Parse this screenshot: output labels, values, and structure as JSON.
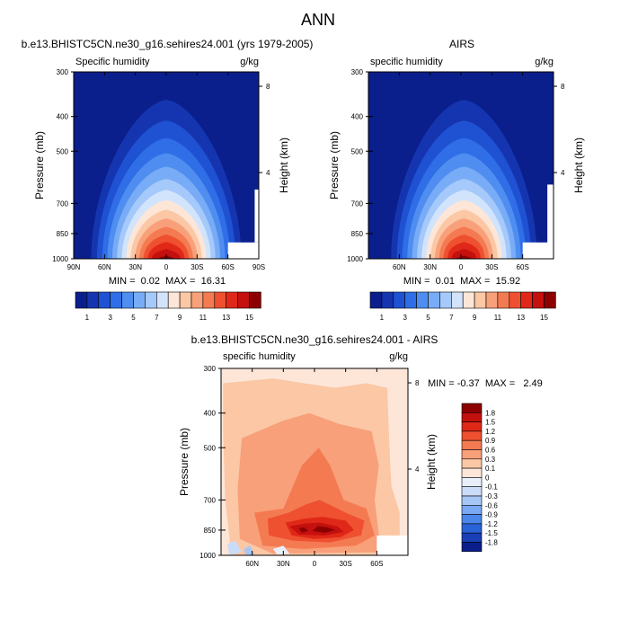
{
  "figure": {
    "title": "ANN"
  },
  "panel_a": {
    "title": "b.e13.BHISTC5CN.ne30_g16.sehires24.001 (yrs 1979-2005)",
    "variable": "Specific humidity",
    "units": "g/kg",
    "ylabel": "Pressure (mb)",
    "y2label": "Height (km)",
    "stats": "MIN =  0.02  MAX =  16.31"
  },
  "panel_b": {
    "title": "AIRS",
    "variable": "specific humidity",
    "units": "g/kg",
    "ylabel": "Pressure (mb)",
    "y2label": "Height (km)",
    "stats": "MIN =  0.01  MAX =  15.92"
  },
  "panel_c": {
    "title": "b.e13.BHISTC5CN.ne30_g16.sehires24.001 - AIRS",
    "variable": "specific humidity",
    "units": "g/kg",
    "ylabel": "Pressure (mb)",
    "y2label": "Height (km)",
    "stats": "MIN = -0.37  MAX =   2.49"
  },
  "colorbar_q": {
    "labels": [
      "1",
      "3",
      "5",
      "7",
      "9",
      "11",
      "13",
      "15"
    ],
    "colors": [
      "#0a1f8c",
      "#1535b0",
      "#1f52d2",
      "#2f6ee6",
      "#4f8ef0",
      "#79acf6",
      "#a5c9fa",
      "#d2e4fc",
      "#fde6d8",
      "#fbc7a5",
      "#f8a07a",
      "#f47a52",
      "#ee5030",
      "#e02818",
      "#c4100e",
      "#8c0000"
    ]
  },
  "colorbar_diff": {
    "labels": [
      "1.8",
      "1.5",
      "1.2",
      "0.9",
      "0.6",
      "0.3",
      "0.1",
      "0",
      "-0.1",
      "-0.3",
      "-0.6",
      "-0.9",
      "-1.2",
      "-1.5",
      "-1.8"
    ],
    "colors": [
      "#8c0000",
      "#c4100e",
      "#e02818",
      "#ee5030",
      "#f47a52",
      "#f8a07a",
      "#fbc7a5",
      "#fde6d8",
      "#e8eefa",
      "#cbdcf8",
      "#a6c6f6",
      "#7aa8f2",
      "#4d86ea",
      "#2a62d8",
      "#1a40b8",
      "#0a1f8c"
    ]
  },
  "chart_data": [
    {
      "type": "heatmap",
      "title": "b.e13.BHISTC5CN.ne30_g16.sehires24.001 (yrs 1979-2005)",
      "subtitle": "Specific humidity",
      "units": "g/kg",
      "xlabel": "",
      "ylabel": "Pressure (mb)",
      "y2label": "Height (km)",
      "x_ticks": [
        "90N",
        "60N",
        "30N",
        "0",
        "30S",
        "60S",
        "90S"
      ],
      "x_tick_values": [
        90,
        60,
        30,
        0,
        -30,
        -60,
        -90
      ],
      "y_ticks": [
        300,
        400,
        500,
        700,
        850,
        1000
      ],
      "y_scale": "log",
      "y2_ticks": [
        8,
        4
      ],
      "xlim": [
        90,
        -90
      ],
      "ylim": [
        1000,
        300
      ],
      "levels": [
        1,
        2,
        3,
        4,
        5,
        6,
        7,
        8,
        9,
        10,
        11,
        12,
        13,
        14,
        15
      ],
      "peak_value": 16.31,
      "peak_location": [
        0,
        1000
      ],
      "min": 0.02,
      "max": 16.31
    },
    {
      "type": "heatmap",
      "title": "AIRS",
      "subtitle": "specific humidity",
      "units": "g/kg",
      "xlabel": "",
      "ylabel": "Pressure (mb)",
      "y2label": "Height (km)",
      "x_ticks": [
        "60N",
        "30N",
        "0",
        "30S",
        "60S"
      ],
      "x_tick_values": [
        60,
        30,
        0,
        -30,
        -60
      ],
      "y_ticks": [
        300,
        400,
        500,
        700,
        850,
        1000
      ],
      "y_scale": "log",
      "y2_ticks": [
        8,
        4
      ],
      "xlim": [
        90,
        -90
      ],
      "ylim": [
        1000,
        300
      ],
      "levels": [
        1,
        2,
        3,
        4,
        5,
        6,
        7,
        8,
        9,
        10,
        11,
        12,
        13,
        14,
        15
      ],
      "peak_value": 15.92,
      "peak_location": [
        0,
        1000
      ],
      "min": 0.01,
      "max": 15.92
    },
    {
      "type": "heatmap",
      "title": "b.e13.BHISTC5CN.ne30_g16.sehires24.001 - AIRS",
      "subtitle": "specific humidity",
      "units": "g/kg",
      "xlabel": "",
      "ylabel": "Pressure (mb)",
      "y2label": "Height (km)",
      "x_ticks": [
        "60N",
        "30N",
        "0",
        "30S",
        "60S"
      ],
      "x_tick_values": [
        60,
        30,
        0,
        -30,
        -60
      ],
      "y_ticks": [
        300,
        400,
        500,
        700,
        850,
        1000
      ],
      "y_scale": "log",
      "y2_ticks": [
        8,
        4
      ],
      "xlim": [
        90,
        -90
      ],
      "ylim": [
        1000,
        300
      ],
      "levels": [
        -1.8,
        -1.5,
        -1.2,
        -0.9,
        -0.6,
        -0.3,
        -0.1,
        0,
        0.1,
        0.3,
        0.6,
        0.9,
        1.2,
        1.5,
        1.8
      ],
      "min": -0.37,
      "max": 2.49
    }
  ]
}
